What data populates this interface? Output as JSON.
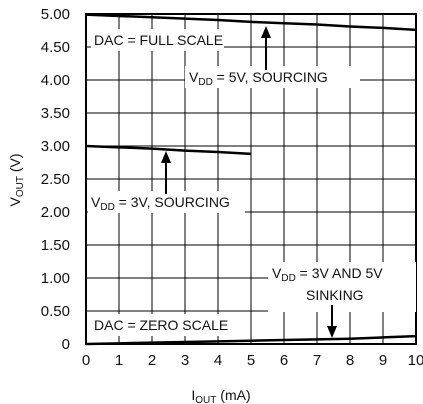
{
  "chart_data": {
    "type": "line",
    "xlabel_main": "I",
    "xlabel_sub": "OUT",
    "xlabel_rest": " (mA)",
    "ylabel_main": "V",
    "ylabel_sub": "OUT",
    "ylabel_rest": " (V)",
    "xlim": [
      0,
      10
    ],
    "ylim": [
      0,
      5
    ],
    "x_ticks": [
      "0",
      "1",
      "2",
      "3",
      "4",
      "5",
      "6",
      "7",
      "8",
      "9",
      "10"
    ],
    "y_ticks": [
      "0",
      "0.50",
      "1.00",
      "1.50",
      "2.00",
      "2.50",
      "3.00",
      "3.50",
      "4.00",
      "4.50",
      "5.00"
    ],
    "grid": true,
    "series": [
      {
        "name": "VDD = 5V, SOURCING",
        "x": [
          0,
          1,
          2,
          3,
          4,
          5,
          6,
          7,
          8,
          9,
          10
        ],
        "y": [
          4.99,
          4.97,
          4.95,
          4.93,
          4.91,
          4.88,
          4.86,
          4.84,
          4.81,
          4.79,
          4.76
        ]
      },
      {
        "name": "VDD = 3V, SOURCING",
        "x": [
          0,
          1,
          2,
          3,
          4,
          5
        ],
        "y": [
          3.0,
          2.98,
          2.96,
          2.93,
          2.91,
          2.88
        ]
      },
      {
        "name": "VDD = 3V AND 5V SINKING",
        "x": [
          0,
          1,
          2,
          3,
          4,
          5,
          6,
          7,
          8,
          9,
          10
        ],
        "y": [
          0.0,
          0.01,
          0.02,
          0.03,
          0.04,
          0.05,
          0.06,
          0.07,
          0.08,
          0.1,
          0.12
        ]
      }
    ],
    "annotations": {
      "dac_full": "DAC = FULL SCALE",
      "dac_zero": "DAC = ZERO SCALE",
      "vdd5_pre": "V",
      "vdd5_sub": "DD",
      "vdd5_rest": " = 5V, SOURCING",
      "vdd3_pre": "V",
      "vdd3_sub": "DD",
      "vdd3_rest": " = 3V, SOURCING",
      "sink_pre": "V",
      "sink_sub": "DD",
      "sink_rest": " = 3V AND 5V",
      "sink_line2": "SINKING"
    }
  }
}
